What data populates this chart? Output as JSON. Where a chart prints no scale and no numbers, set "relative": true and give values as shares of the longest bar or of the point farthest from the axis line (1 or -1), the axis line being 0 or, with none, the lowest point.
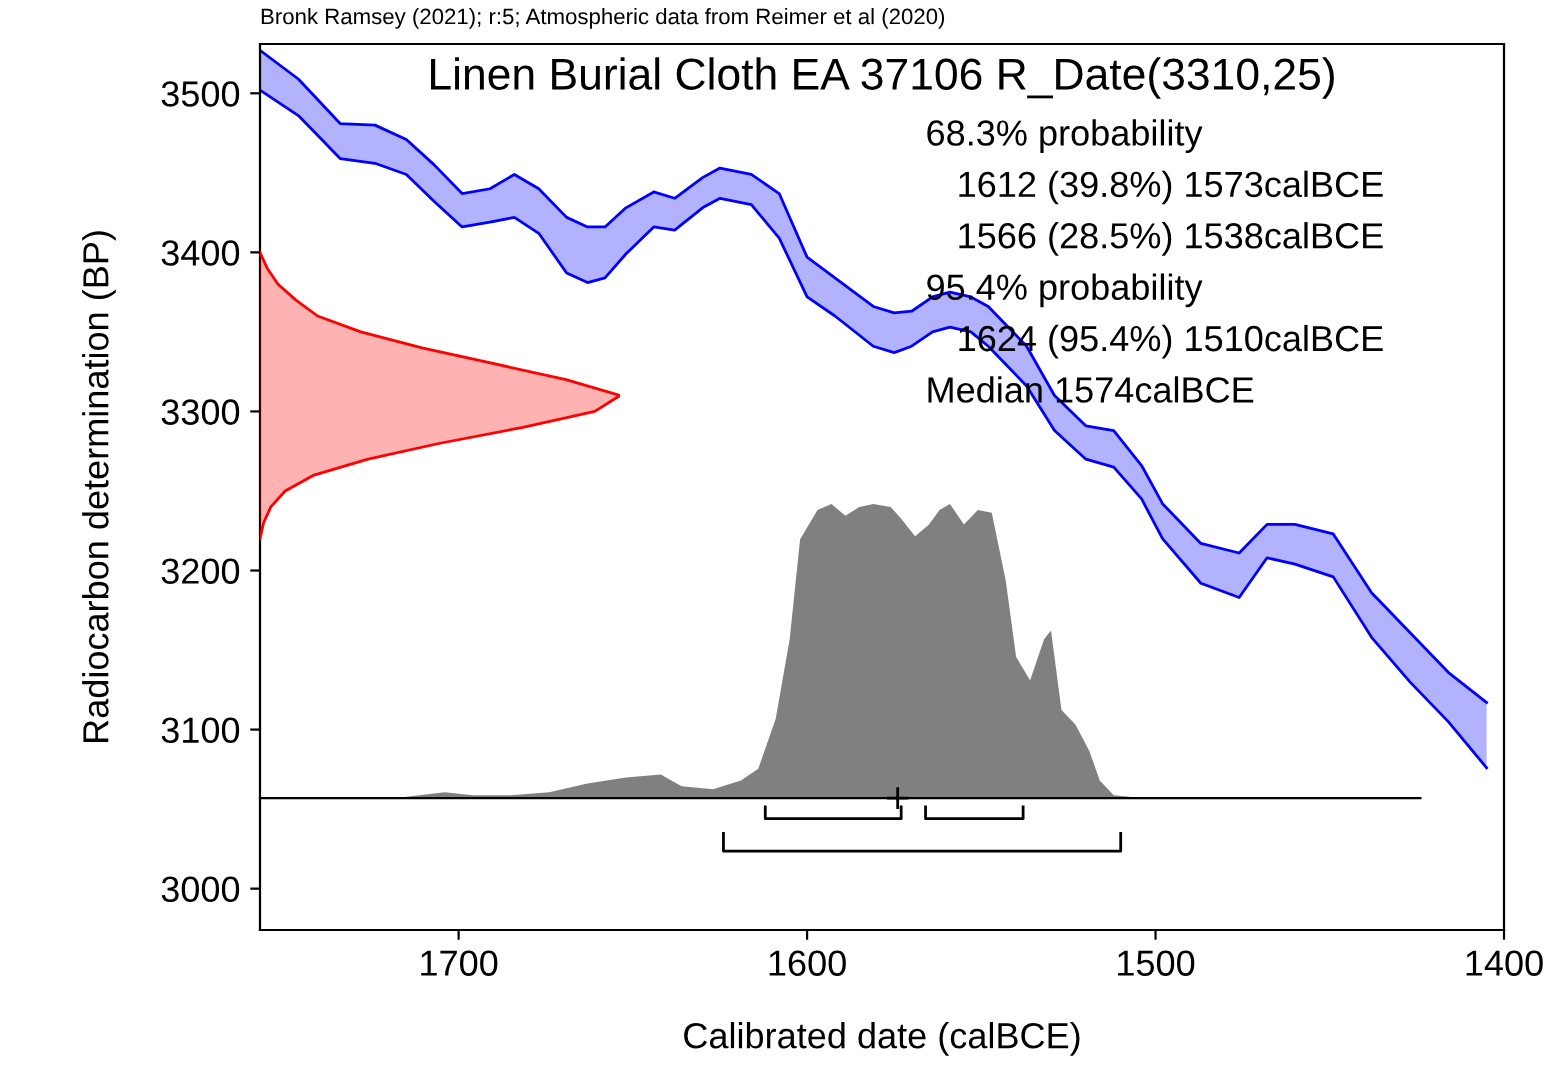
{
  "chart_data": [
    {
      "type": "line",
      "title": "Linen Burial Cloth EA 37106 R_Date(3310,25)",
      "xlabel": "Calibrated date (calBCE)",
      "ylabel": "Radiocarbon determination (BP)",
      "annotations": [
        "Bronk Ramsey (2021); r:5; Atmospheric data from Reimer et al (2020)",
        "68.3% probability",
        "  1612 (39.8%) 1573calBCE",
        "  1566 (28.5%) 1538calBCE",
        "95.4% probability",
        "  1624 (95.4%) 1510calBCE",
        "Median 1574calBCE"
      ],
      "xlim": [
        1757,
        1400
      ],
      "xticks": [
        1700,
        1600,
        1500,
        1400
      ],
      "ylim": [
        2974,
        3531
      ],
      "yticks": [
        3000,
        3100,
        3200,
        3300,
        3400,
        3500
      ],
      "legend": false,
      "x": [
        1757,
        1746,
        1734,
        1724,
        1715,
        1707,
        1699,
        1691,
        1684,
        1677,
        1669,
        1663,
        1658,
        1652,
        1644,
        1638,
        1630,
        1625,
        1616,
        1608,
        1600,
        1592,
        1581,
        1575,
        1570,
        1564,
        1559,
        1553,
        1548,
        1537,
        1529,
        1520,
        1512,
        1504,
        1498,
        1487,
        1476,
        1468,
        1460,
        1449,
        1438,
        1427,
        1416,
        1405
      ],
      "series": [
        {
          "color": "#0000ff",
          "values": [
            3527,
            3509,
            3481,
            3480,
            3471,
            3455,
            3437,
            3440,
            3449,
            3440,
            3422,
            3416,
            3416,
            3428,
            3438,
            3434,
            3447,
            3453,
            3449,
            3437,
            3397,
            3384,
            3366,
            3362,
            3363,
            3372,
            3375,
            3372,
            3366,
            3341,
            3310,
            3291,
            3288,
            3266,
            3242,
            3217,
            3211,
            3229,
            3229,
            3223,
            3186,
            3161,
            3136,
            3117
          ],
          "upper": [
            3527,
            3509,
            3481,
            3480,
            3471,
            3455,
            3437,
            3440,
            3449,
            3440,
            3422,
            3416,
            3416,
            3428,
            3438,
            3434,
            3447,
            3453,
            3449,
            3437,
            3397,
            3384,
            3366,
            3362,
            3363,
            3372,
            3375,
            3372,
            3366,
            3341,
            3310,
            3291,
            3288,
            3266,
            3242,
            3217,
            3211,
            3229,
            3229,
            3223,
            3186,
            3161,
            3136,
            3117
          ],
          "lower": [
            3502,
            3486,
            3459,
            3456,
            3449,
            3432,
            3416,
            3419,
            3422,
            3412,
            3387,
            3381,
            3384,
            3399,
            3416,
            3414,
            3428,
            3434,
            3430,
            3409,
            3372,
            3360,
            3341,
            3337,
            3341,
            3350,
            3353,
            3350,
            3341,
            3316,
            3288,
            3270,
            3265,
            3245,
            3220,
            3192,
            3183,
            3208,
            3204,
            3196,
            3158,
            3130,
            3105,
            3076
          ]
        },
        {
          "color": "#0000ff",
          "values": [
            3502,
            3486,
            3459,
            3456,
            3449,
            3432,
            3416,
            3419,
            3422,
            3412,
            3387,
            3381,
            3384,
            3399,
            3416,
            3414,
            3428,
            3434,
            3430,
            3409,
            3372,
            3360,
            3341,
            3337,
            3341,
            3350,
            3353,
            3350,
            3341,
            3316,
            3288,
            3270,
            3265,
            3245,
            3220,
            3192,
            3183,
            3208,
            3204,
            3196,
            3158,
            3130,
            3105,
            3076
          ]
        }
      ]
    },
    {
      "type": "area",
      "orientation": "horizontal",
      "relative": true,
      "tick_labels": false,
      "ylim": [
        2974,
        3531
      ],
      "x": [
        3400,
        3390,
        3380,
        3370,
        3360,
        3350,
        3340,
        3330,
        3320,
        3310,
        3300,
        3290,
        3280,
        3270,
        3260,
        3250,
        3240,
        3230,
        3220
      ],
      "series": [
        {
          "color": "#ff0000",
          "values": [
            0,
            0.02,
            0.05,
            0.1,
            0.16,
            0.28,
            0.45,
            0.65,
            0.85,
            1,
            0.93,
            0.73,
            0.5,
            0.3,
            0.15,
            0.07,
            0.03,
            0.01,
            0
          ]
        }
      ]
    },
    {
      "type": "area",
      "relative": true,
      "tick_labels": false,
      "xlim": [
        1757,
        1400
      ],
      "series": [
        {
          "color": "#808080",
          "x": [
            1757,
            1718,
            1704,
            1696,
            1685,
            1674,
            1663,
            1652,
            1642,
            1636,
            1627,
            1619,
            1614,
            1609,
            1605,
            1602,
            1597,
            1593,
            1589,
            1585,
            1581,
            1576,
            1573,
            1569,
            1565,
            1562,
            1559,
            1555,
            1551,
            1547,
            1543,
            1540,
            1536,
            1532,
            1530,
            1527,
            1523,
            1519,
            1516,
            1512,
            1504,
            1424
          ],
          "values": [
            0,
            0,
            0.02,
            0.01,
            0.01,
            0.02,
            0.05,
            0.07,
            0.08,
            0.04,
            0.03,
            0.06,
            0.1,
            0.27,
            0.54,
            0.88,
            0.98,
            1,
            0.96,
            0.99,
            1,
            0.99,
            0.95,
            0.89,
            0.93,
            0.98,
            1,
            0.93,
            0.98,
            0.97,
            0.74,
            0.48,
            0.4,
            0.54,
            0.57,
            0.3,
            0.25,
            0.16,
            0.06,
            0.01,
            0,
            0
          ]
        },
        {
          "type": "line",
          "color": "#000000",
          "x": [
            1612,
            1612,
            1573,
            1573
          ],
          "values": [
            -0.03,
            -0.07,
            -0.07,
            -0.03
          ]
        },
        {
          "type": "line",
          "color": "#000000",
          "x": [
            1566,
            1566,
            1538,
            1538
          ],
          "values": [
            -0.03,
            -0.07,
            -0.07,
            -0.03
          ]
        },
        {
          "type": "line",
          "color": "#000000",
          "x": [
            1624,
            1624,
            1510,
            1510
          ],
          "values": [
            -0.12,
            -0.18,
            -0.18,
            -0.12
          ]
        },
        {
          "type": "scatter",
          "marker": "cross",
          "color": "#000000",
          "x": [
            1574
          ],
          "values": [
            0
          ]
        }
      ]
    }
  ]
}
